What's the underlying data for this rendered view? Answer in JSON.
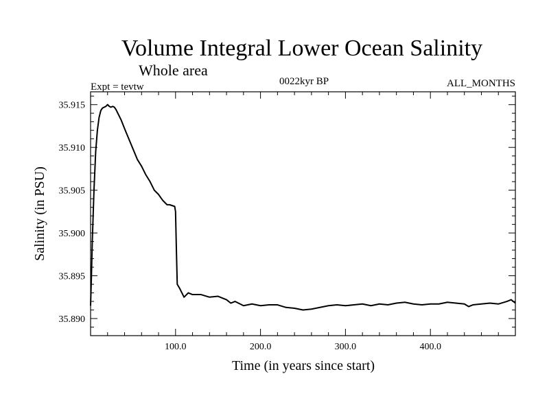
{
  "chart_data": {
    "type": "line",
    "title": "Volume Integral Lower Ocean Salinity",
    "subtitle": "Whole area",
    "expt_label": "Expt = tevtw",
    "period_label": "0022kyr BP",
    "months_label": "ALL_MONTHS",
    "xlabel": "Time (in years since start)",
    "ylabel": "Salinity (in PSU)",
    "xlim": [
      0,
      500
    ],
    "ylim": [
      35.888,
      35.9165
    ],
    "xticks": [
      100,
      200,
      300,
      400
    ],
    "xtick_labels": [
      "100.0",
      "200.0",
      "300.0",
      "400.0"
    ],
    "yticks": [
      35.89,
      35.895,
      35.9,
      35.905,
      35.91,
      35.915
    ],
    "ytick_labels": [
      "35.890",
      "35.895",
      "35.900",
      "35.905",
      "35.910",
      "35.915"
    ],
    "series": [
      {
        "name": "salinity",
        "x": [
          0,
          1,
          2,
          4,
          6,
          8,
          10,
          12,
          14,
          16,
          18,
          20,
          22,
          24,
          26,
          28,
          30,
          33,
          36,
          40,
          45,
          50,
          55,
          60,
          65,
          70,
          75,
          80,
          85,
          88,
          90,
          93,
          96,
          99,
          100,
          101,
          102,
          105,
          110,
          115,
          120,
          130,
          140,
          150,
          160,
          165,
          170,
          180,
          190,
          200,
          210,
          220,
          230,
          240,
          250,
          260,
          270,
          280,
          290,
          300,
          310,
          320,
          330,
          340,
          350,
          360,
          370,
          380,
          390,
          400,
          410,
          420,
          430,
          440,
          445,
          450,
          460,
          470,
          480,
          490,
          495,
          500
        ],
        "y": [
          35.8915,
          35.895,
          35.899,
          35.905,
          35.9095,
          35.912,
          35.9135,
          35.9143,
          35.9146,
          35.9147,
          35.9148,
          35.915,
          35.9148,
          35.9147,
          35.9148,
          35.9147,
          35.9144,
          35.9138,
          35.9132,
          35.9122,
          35.911,
          35.9098,
          35.9086,
          35.9078,
          35.9068,
          35.906,
          35.905,
          35.9045,
          35.9038,
          35.9035,
          35.9033,
          35.9033,
          35.9032,
          35.9031,
          35.9025,
          35.898,
          35.894,
          35.8935,
          35.8925,
          35.893,
          35.8928,
          35.8928,
          35.8925,
          35.8926,
          35.8922,
          35.8918,
          35.892,
          35.8915,
          35.8917,
          35.8915,
          35.8916,
          35.8916,
          35.8913,
          35.8912,
          35.891,
          35.8911,
          35.8913,
          35.8915,
          35.8916,
          35.8915,
          35.8916,
          35.8917,
          35.8915,
          35.8917,
          35.8916,
          35.8918,
          35.8919,
          35.8917,
          35.8916,
          35.8917,
          35.8917,
          35.8919,
          35.8918,
          35.8917,
          35.8914,
          35.8916,
          35.8917,
          35.8918,
          35.8917,
          35.892,
          35.8922,
          35.8918
        ]
      }
    ]
  }
}
